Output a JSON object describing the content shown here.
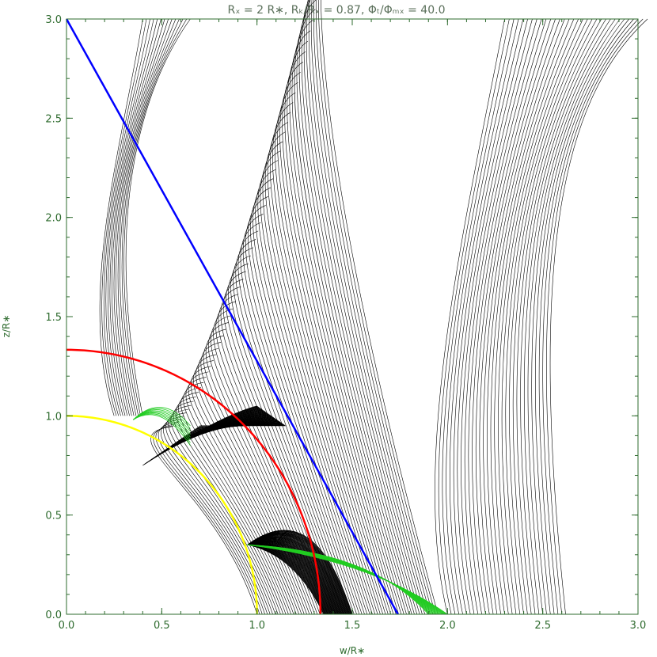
{
  "chart_data": {
    "type": "line",
    "title": "Rₓ = 2 R∗, Rₖ/Rₓ = 0.87, Φₜ/Φₘₓ = 40.0",
    "xlabel": "w/R∗",
    "ylabel": "z/R∗",
    "xlim": [
      0.0,
      3.0
    ],
    "ylim": [
      0.0,
      3.0
    ],
    "x_ticks": [
      "0.0",
      "0.5",
      "1.0",
      "1.5",
      "2.0",
      "2.5",
      "3.0"
    ],
    "y_ticks": [
      "0.0",
      "0.5",
      "1.0",
      "1.5",
      "2.0",
      "2.5",
      "3.0"
    ],
    "grid": false,
    "colors": {
      "axis": "#2e6b2e",
      "field_lines": "#000000",
      "disk_field_lines": "#22cc22",
      "stellar_surface": "#ffff00",
      "corotation_circle": "#ff0000",
      "inclined_line": "#0000ff"
    },
    "series": [
      {
        "curve": "stellar-surface",
        "shape": "circle",
        "radius": 1.0,
        "color": "#ffff00"
      },
      {
        "curve": "x-point-circle",
        "shape": "circle",
        "radius": 1.333,
        "color": "#ff0000"
      },
      {
        "curve": "blue-line",
        "shape": "segment",
        "x": [
          0.0,
          1.74
        ],
        "y": [
          3.0,
          0.0
        ],
        "color": "#0000ff"
      }
    ],
    "x_point": [
      2.0,
      0.0
    ]
  }
}
